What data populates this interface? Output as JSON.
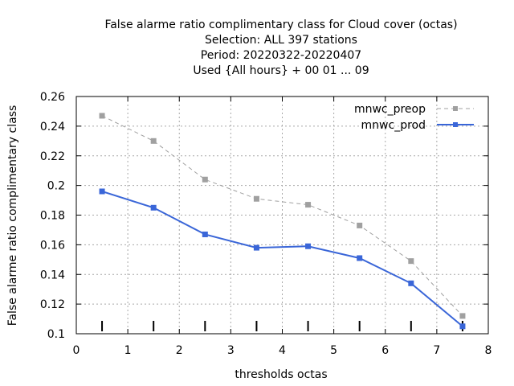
{
  "chart_data": {
    "type": "line",
    "title_lines": [
      "False alarme ratio complimentary class  for Cloud cover (octas)",
      "Selection: ALL    397 stations",
      "Period: 20220322-20220407",
      "Used {All hours} + 00 01 ... 09"
    ],
    "xlabel": "thresholds octas",
    "ylabel": "False alarme ratio complimentary class",
    "xlim": [
      0,
      8
    ],
    "ylim": [
      0.1,
      0.26
    ],
    "xticks": [
      0,
      1,
      2,
      3,
      4,
      5,
      6,
      7,
      8
    ],
    "xtick_labels": [
      "0",
      "1",
      "2",
      "3",
      "4",
      "5",
      "6",
      "7",
      "8"
    ],
    "yticks": [
      0.1,
      0.12,
      0.14,
      0.16,
      0.18,
      0.2,
      0.22,
      0.24,
      0.26
    ],
    "ytick_labels": [
      "0.1",
      "0.12",
      "0.14",
      "0.16",
      "0.18",
      "0.2",
      "0.22",
      "0.24",
      "0.26"
    ],
    "grid": true,
    "legend_position": "top-right",
    "x": [
      0.5,
      1.5,
      2.5,
      3.5,
      4.5,
      5.5,
      6.5,
      7.5
    ],
    "series": [
      {
        "name": "mnwc_preop",
        "color": "#a0a0a0",
        "style": "dashed",
        "values": [
          0.247,
          0.23,
          0.204,
          0.191,
          0.187,
          0.173,
          0.149,
          0.112
        ]
      },
      {
        "name": "mnwc_prod",
        "color": "#3a66d8",
        "style": "solid",
        "values": [
          0.196,
          0.185,
          0.167,
          0.158,
          0.159,
          0.151,
          0.134,
          0.105
        ]
      }
    ],
    "bottom_markers_x": [
      0.5,
      1.5,
      2.5,
      3.5,
      4.5,
      5.5,
      6.5,
      7.5
    ]
  }
}
